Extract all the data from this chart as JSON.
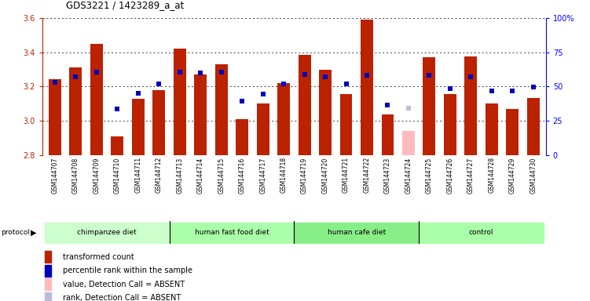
{
  "title": "GDS3221 / 1423289_a_at",
  "samples": [
    "GSM144707",
    "GSM144708",
    "GSM144709",
    "GSM144710",
    "GSM144711",
    "GSM144712",
    "GSM144713",
    "GSM144714",
    "GSM144715",
    "GSM144716",
    "GSM144717",
    "GSM144718",
    "GSM144719",
    "GSM144720",
    "GSM144721",
    "GSM144722",
    "GSM144723",
    "GSM144724",
    "GSM144725",
    "GSM144726",
    "GSM144727",
    "GSM144728",
    "GSM144729",
    "GSM144730"
  ],
  "red_values": [
    3.245,
    3.31,
    3.45,
    2.91,
    3.13,
    3.18,
    3.42,
    3.27,
    3.33,
    3.01,
    3.1,
    3.22,
    3.385,
    3.3,
    3.155,
    3.59,
    3.035,
    2.94,
    3.37,
    3.155,
    3.375,
    3.1,
    3.07,
    3.135
  ],
  "blue_y_values": [
    3.225,
    3.255,
    3.285,
    3.07,
    3.16,
    3.215,
    3.285,
    3.28,
    3.285,
    3.115,
    3.155,
    3.215,
    3.27,
    3.255,
    3.215,
    3.265,
    3.09,
    null,
    3.265,
    3.19,
    3.255,
    3.175,
    3.175,
    3.195
  ],
  "absent_bar_idx": [
    17
  ],
  "absent_blue_idx": [
    17
  ],
  "absent_bar_values": [
    2.94
  ],
  "absent_blue_values": [
    3.075
  ],
  "ylim_left": [
    2.8,
    3.6
  ],
  "ylim_right": [
    0,
    100
  ],
  "yticks_left": [
    2.8,
    3.0,
    3.2,
    3.4,
    3.6
  ],
  "yticks_right": [
    0,
    25,
    50,
    75,
    100
  ],
  "bar_color": "#bb2200",
  "dot_color": "#0000bb",
  "absent_bar_color": "#ffbbbb",
  "absent_dot_color": "#bbbbdd",
  "bar_width": 0.6,
  "groups": [
    {
      "label": "chimpanzee diet",
      "start": 0,
      "end": 6,
      "color": "#ccffcc"
    },
    {
      "label": "human fast food diet",
      "start": 6,
      "end": 12,
      "color": "#aaffaa"
    },
    {
      "label": "human cafe diet",
      "start": 12,
      "end": 18,
      "color": "#88ee88"
    },
    {
      "label": "control",
      "start": 18,
      "end": 24,
      "color": "#aaffaa"
    }
  ],
  "legend_items": [
    {
      "color": "#bb2200",
      "label": "transformed count",
      "marker": "square"
    },
    {
      "color": "#0000bb",
      "label": "percentile rank within the sample",
      "marker": "square"
    },
    {
      "color": "#ffbbbb",
      "label": "value, Detection Call = ABSENT",
      "marker": "square"
    },
    {
      "color": "#bbbbdd",
      "label": "rank, Detection Call = ABSENT",
      "marker": "square"
    }
  ],
  "fig_width": 7.51,
  "fig_height": 3.84,
  "dpi": 100
}
